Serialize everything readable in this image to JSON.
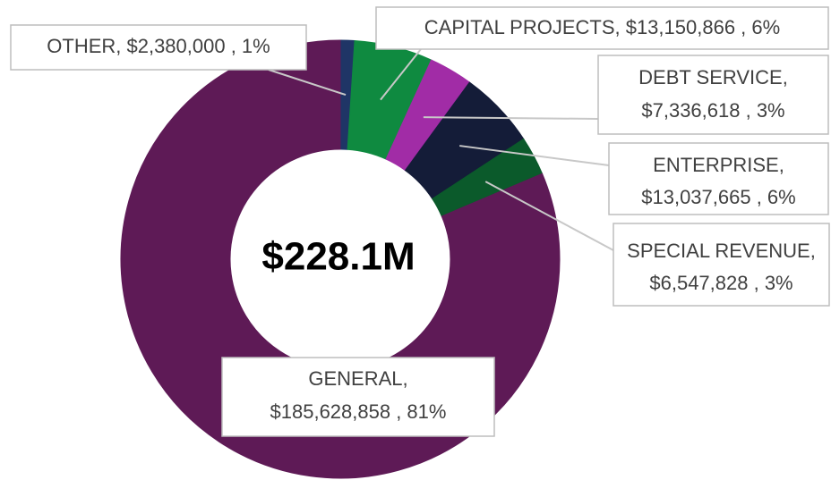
{
  "chart_data": {
    "type": "donut",
    "center_label": "$228.1M",
    "values": [
      2380000,
      13150866,
      7336618,
      13037665,
      6547828,
      185628858
    ],
    "value_labels": [
      [
        "OTHER,  $2,380,000 , 1%"
      ],
      [
        "CAPITAL PROJECTS,  $13,150,866 , 6%"
      ],
      [
        "DEBT SERVICE,",
        "$7,336,618 , 3%"
      ],
      [
        "ENTERPRISE,",
        "$13,037,665 , 6%"
      ],
      [
        "SPECIAL REVENUE,",
        "$6,547,828 , 3%"
      ],
      [
        "GENERAL,",
        "$185,628,858 , 81%"
      ]
    ],
    "colors": [
      "#1f3566",
      "#0f8a40",
      "#a12ca6",
      "#141c38",
      "#0b5a2b",
      "#5e1a56"
    ]
  }
}
